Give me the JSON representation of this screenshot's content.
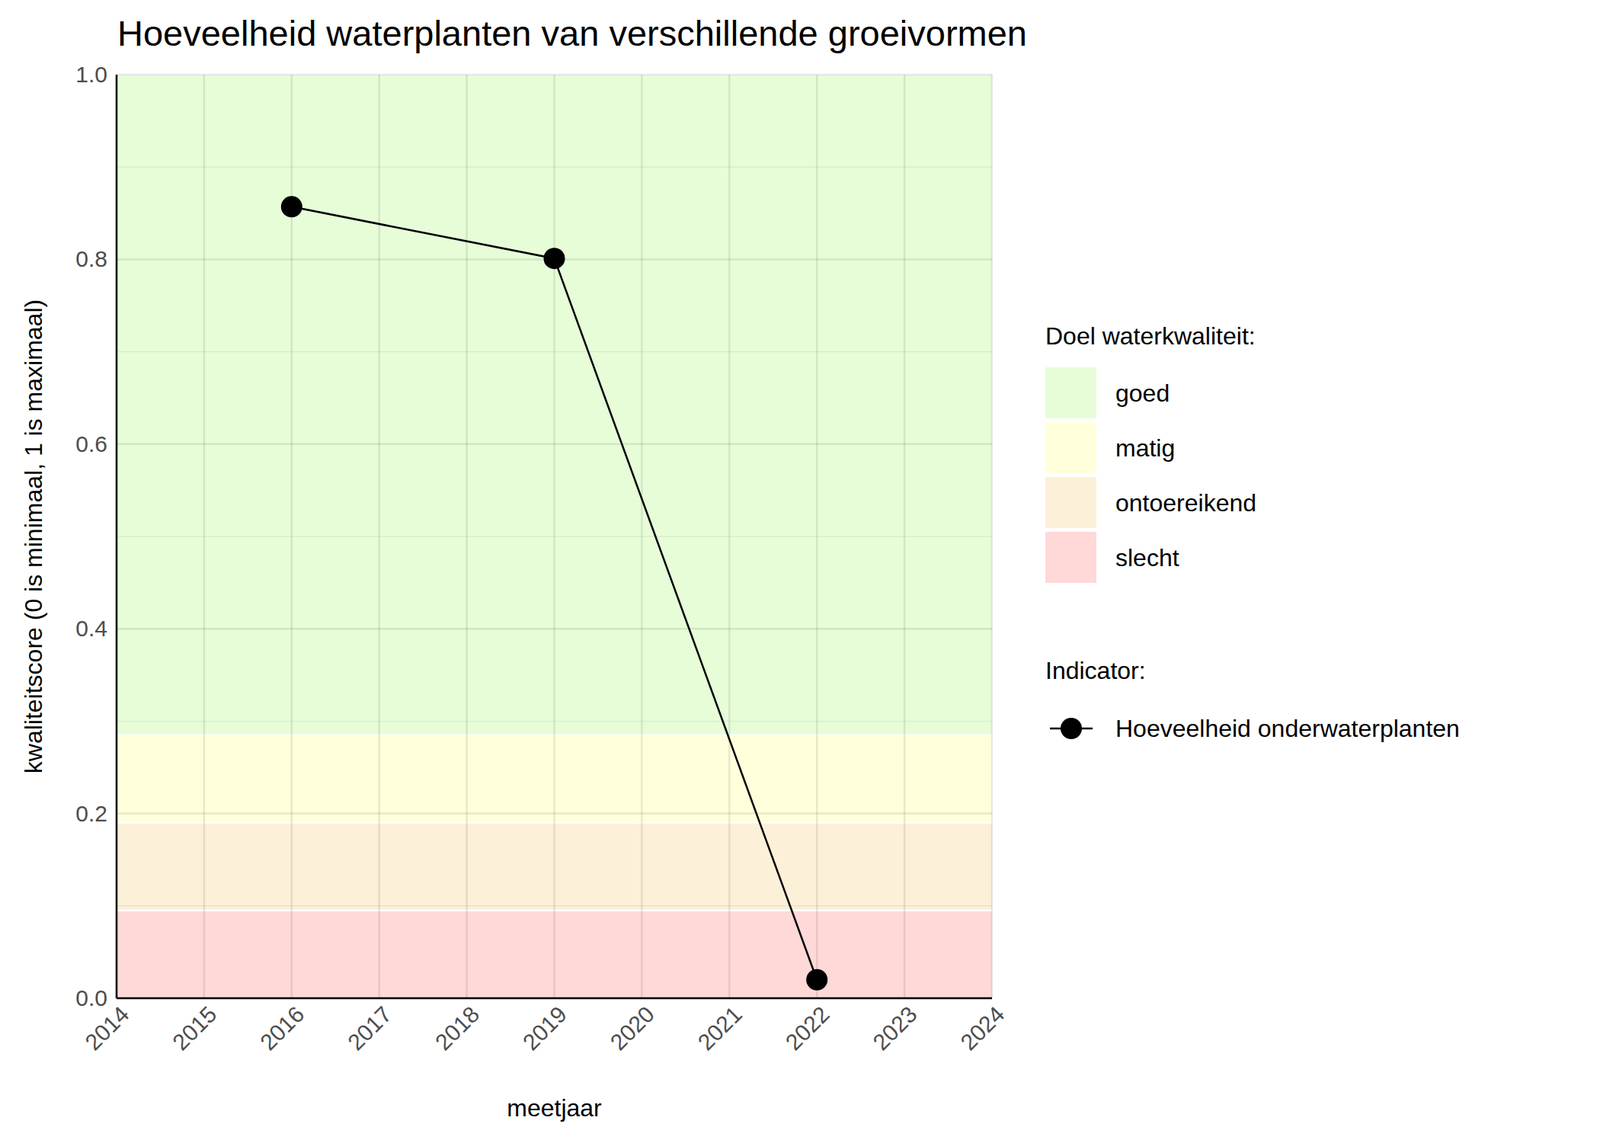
{
  "chart_data": {
    "type": "line",
    "title": "Hoeveelheid waterplanten van verschillende groeivormen",
    "x_label": "meetjaar",
    "y_label": "kwaliteitscore (0 is minimaal, 1 is maximaal)",
    "x": [
      2016,
      2019,
      2022
    ],
    "series": [
      {
        "name": "Hoeveelheid onderwaterplanten",
        "color": "#000000",
        "marker": "circle",
        "line_style": "solid",
        "values": [
          0.857,
          0.801,
          0.02
        ]
      }
    ],
    "xlim": [
      2014,
      2024
    ],
    "xticks": [
      2014,
      2015,
      2016,
      2017,
      2018,
      2019,
      2020,
      2021,
      2022,
      2023,
      2024
    ],
    "ylim": [
      0,
      1
    ],
    "yticks": [
      {
        "value": 0,
        "label": "0.0"
      },
      0.2,
      0.4,
      0.6,
      0.8,
      {
        "value": 1,
        "label": "1.0"
      }
    ],
    "grid": true,
    "legend": "right",
    "bands_title": "Doel waterkwaliteit:",
    "series_title": "Indicator:",
    "bands": [
      {
        "name": "goed",
        "from": 0.285,
        "to": 1,
        "color": "#e6fdd8"
      },
      {
        "name": "matig",
        "from": 0.19,
        "to": 0.285,
        "color": "#ffffdc"
      },
      {
        "name": "ontoereikend",
        "from": 0.095,
        "to": 0.19,
        "color": "#fdf0d8"
      },
      {
        "name": "slecht",
        "from": 0,
        "to": 0.095,
        "color": "#ffd8d8"
      }
    ]
  }
}
